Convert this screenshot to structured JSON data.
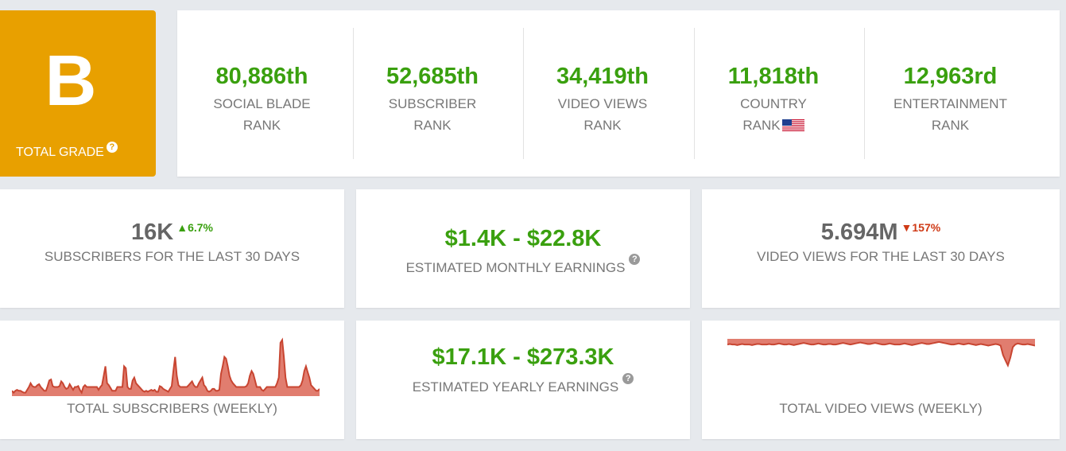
{
  "grade": {
    "letter": "B",
    "label": "TOTAL GRADE",
    "help_icon": "question-circle-icon"
  },
  "ranks": [
    {
      "value": "80,886th",
      "line1": "SOCIAL BLADE",
      "line2": "RANK"
    },
    {
      "value": "52,685th",
      "line1": "SUBSCRIBER",
      "line2": "RANK"
    },
    {
      "value": "34,419th",
      "line1": "VIDEO VIEWS",
      "line2": "RANK"
    },
    {
      "value": "11,818th",
      "line1": "COUNTRY",
      "line2": "RANK",
      "flag_icon": "us-flag-icon"
    },
    {
      "value": "12,963rd",
      "line1": "ENTERTAINMENT",
      "line2": "RANK"
    }
  ],
  "stats": {
    "subs30": {
      "value": "16K",
      "change": "6.7%",
      "direction": "up",
      "label": "SUBSCRIBERS FOR THE LAST 30 DAYS"
    },
    "monthly": {
      "value": "$1.4K - $22.8K",
      "label": "ESTIMATED MONTHLY EARNINGS"
    },
    "views30": {
      "value": "5.694M",
      "change": "157%",
      "direction": "down",
      "label": "VIDEO VIEWS FOR THE LAST 30 DAYS"
    },
    "yearly": {
      "value": "$17.1K - $273.3K",
      "label": "ESTIMATED YEARLY EARNINGS"
    }
  },
  "charts": {
    "subs_weekly": {
      "label": "TOTAL SUBSCRIBERS (WEEKLY)",
      "values": [
        4,
        2,
        4,
        5,
        4,
        4,
        3,
        2,
        2,
        5,
        8,
        12,
        9,
        8,
        8,
        10,
        11,
        8,
        6,
        4,
        4,
        9,
        15,
        16,
        9,
        8,
        8,
        8,
        9,
        14,
        12,
        8,
        6,
        7,
        11,
        8,
        5,
        8,
        8,
        9,
        5,
        2,
        8,
        10,
        8,
        8,
        8,
        8,
        8,
        8,
        8,
        5,
        8,
        10,
        20,
        30,
        12,
        10,
        7,
        4,
        4,
        4,
        8,
        8,
        8,
        8,
        30,
        28,
        8,
        6,
        6,
        15,
        18,
        12,
        10,
        8,
        6,
        4,
        3,
        4,
        3,
        4,
        5,
        4,
        5,
        3,
        3,
        9,
        8,
        6,
        5,
        4,
        3,
        6,
        9,
        25,
        40,
        20,
        10,
        8,
        8,
        8,
        8,
        8,
        10,
        12,
        14,
        10,
        8,
        8,
        12,
        15,
        18,
        10,
        8,
        4,
        3,
        4,
        6,
        6,
        4,
        4,
        5,
        22,
        30,
        40,
        38,
        30,
        20,
        15,
        12,
        10,
        8,
        8,
        8,
        8,
        8,
        8,
        9,
        12,
        20,
        25,
        22,
        15,
        8,
        8,
        8,
        5,
        4,
        6,
        8,
        8,
        8,
        8,
        8,
        8,
        12,
        18,
        55,
        58,
        40,
        18,
        8,
        8,
        8,
        8,
        8,
        8,
        8,
        8,
        10,
        15,
        25,
        30,
        24,
        18,
        10,
        8,
        6,
        4,
        4,
        6
      ],
      "fill": "#e17d6f",
      "stroke": "#c84531"
    },
    "views_weekly": {
      "label": "TOTAL VIDEO VIEWS (WEEKLY)",
      "values": [
        50,
        51,
        50,
        50,
        49,
        50,
        51,
        50,
        50,
        50,
        49,
        50,
        51,
        51,
        50,
        50,
        50,
        51,
        50,
        50,
        51,
        52,
        51,
        50,
        50,
        51,
        50,
        49,
        50,
        51,
        52,
        53,
        52,
        51,
        50,
        50,
        51,
        52,
        51,
        50,
        50,
        51,
        51,
        50,
        50,
        51,
        52,
        53,
        52,
        51,
        50,
        51,
        52,
        53,
        54,
        53,
        52,
        51,
        51,
        52,
        53,
        52,
        51,
        50,
        50,
        51,
        52,
        51,
        50,
        50,
        50,
        51,
        52,
        51,
        50,
        49,
        50,
        51,
        52,
        53,
        52,
        51,
        51,
        52,
        53,
        54,
        55,
        54,
        53,
        52,
        51,
        50,
        50,
        51,
        52,
        51,
        50,
        51,
        52,
        51,
        50,
        49,
        50,
        51,
        50,
        49,
        48,
        49,
        50,
        51,
        50,
        48,
        30,
        20,
        10,
        25,
        45,
        50,
        52,
        51,
        50,
        50,
        51,
        50,
        49,
        48
      ],
      "fill": "#e17d6f",
      "stroke": "#c84531"
    }
  },
  "colors": {
    "accent_green": "#3aa00f",
    "accent_red": "#cf3a16",
    "grade_bg": "#e8a000"
  }
}
